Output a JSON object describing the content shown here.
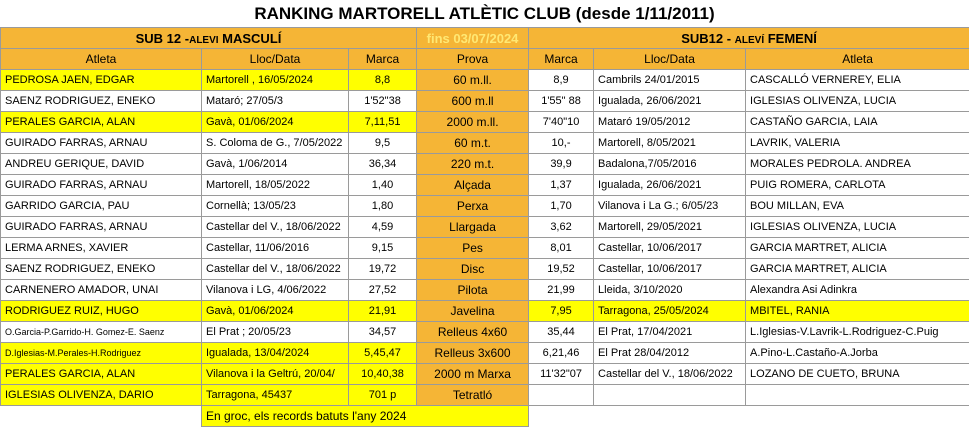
{
  "title": "RANKING  MARTORELL ATLÈTIC CLUB (desde 1/11/2011)",
  "header": {
    "male_main": "SUB 12 -",
    "male_small": "ALEVI",
    "male_end": " MASCULÍ",
    "date_label": "fins 03/07/2024",
    "female_main": "SUB12 - ",
    "female_small": "ALEVÍ",
    "female_end": " FEMENÍ"
  },
  "columns": {
    "atleta_m": "Atleta",
    "lloc_m": "Lloc/Data",
    "marca_m": "Marca",
    "prova": "Prova",
    "marca_f": "Marca",
    "lloc_f": "Lloc/Data",
    "atleta_f": "Atleta"
  },
  "rows": [
    {
      "ma": "PEDROSA JAEN, EDGAR",
      "ml": "Martorell , 16/05/2024",
      "mm": "8,8",
      "p": "60 m.ll.",
      "fm": "8,9",
      "fl": "Cambrils 24/01/2015",
      "fa": "CASCALLÓ VERNEREY, ELIA"
    },
    {
      "ma": "SAENZ RODRIGUEZ, ENEKO",
      "ml": "Mataró; 27/05/3",
      "mm": "1'52\"38",
      "p": "600 m.ll",
      "fm": "1'55\" 88",
      "fl": "Igualada, 26/06/2021",
      "fa": "IGLESIAS OLIVENZA, LUCIA"
    },
    {
      "ma": "PERALES GARCIA, ALAN",
      "ml": "Gavà, 01/06/2024",
      "mm": "7,11,51",
      "p": "2000 m.ll.",
      "fm": "7'40\"10",
      "fl": "Mataró 19/05/2012",
      "fa": "CASTAÑO GARCIA, LAIA"
    },
    {
      "ma": "GUIRADO FARRAS, ARNAU",
      "ml": "S. Coloma de G., 7/05/2022",
      "mm": "9,5",
      "p": "60 m.t.",
      "fm": "10,-",
      "fl": "Martorell, 8/05/2021",
      "fa": "LAVRIK, VALERIA"
    },
    {
      "ma": "ANDREU GERIQUE, DAVID",
      "ml": "Gavà, 1/06/2014",
      "mm": "36,34",
      "p": "220 m.t.",
      "fm": "39,9",
      "fl": "Badalona,7/05/2016",
      "fa": "MORALES PEDROLA. ANDREA"
    },
    {
      "ma": "GUIRADO FARRAS, ARNAU",
      "ml": "Martorell, 18/05/2022",
      "mm": "1,40",
      "p": "Alçada",
      "fm": "1,37",
      "fl": "Igualada, 26/06/2021",
      "fa": "PUIG ROMERA, CARLOTA"
    },
    {
      "ma": "GARRIDO GARCIA, PAU",
      "ml": "Cornellà; 13/05/23",
      "mm": "1,80",
      "p": "Perxa",
      "fm": "1,70",
      "fl": "Vilanova i La G.; 6/05/23",
      "fa": "BOU MILLAN, EVA"
    },
    {
      "ma": "GUIRADO FARRAS, ARNAU",
      "ml": "Castellar del V., 18/06/2022",
      "mm": "4,59",
      "p": "Llargada",
      "fm": "3,62",
      "fl": "Martorell, 29/05/2021",
      "fa": "IGLESIAS OLIVENZA, LUCIA"
    },
    {
      "ma": "LERMA ARNES, XAVIER",
      "ml": "Castellar, 11/06/2016",
      "mm": "9,15",
      "p": "Pes",
      "fm": "8,01",
      "fl": "Castellar, 10/06/2017",
      "fa": "GARCIA MARTRET, ALICIA"
    },
    {
      "ma": "SAENZ RODRIGUEZ, ENEKO",
      "ml": "Castellar del V., 18/06/2022",
      "mm": "19,72",
      "p": "Disc",
      "fm": "19,52",
      "fl": "Castellar, 10/06/2017",
      "fa": "GARCIA MARTRET, ALICIA"
    },
    {
      "ma": "CARNENERO AMADOR, UNAI",
      "ml": "Vilanova i LG, 4/06/2022",
      "mm": "27,52",
      "p": "Pilota",
      "fm": "21,99",
      "fl": "Lleida, 3/10/2020",
      "fa": "Alexandra Asi Adinkra"
    },
    {
      "ma": "RODRIGUEZ RUIZ, HUGO",
      "ml": "Gavà, 01/06/2024",
      "mm": "21,91",
      "p": "Javelina",
      "fm": "7,95",
      "fl": "Tarragona, 25/05/2024",
      "fa": "MBITEL, RANIA"
    },
    {
      "ma": "O.Garcia-P.Garrido-H. Gomez-E. Saenz",
      "ml": "El Prat ; 20/05/23",
      "mm": "34,57",
      "p": "Relleus 4x60",
      "fm": "35,44",
      "fl": "El Prat, 17/04/2021",
      "fa": "L.Iglesias-V.Lavrik-L.Rodriguez-C.Puig"
    },
    {
      "ma": "D.Iglesias-M.Perales-H.Rodriguez",
      "ml": "Igualada, 13/04/2024",
      "mm": "5,45,47",
      "p": "Relleus 3x600",
      "fm": "6,21,46",
      "fl": "El Prat 28/04/2012",
      "fa": "A.Pino-L.Castaño-A.Jorba"
    },
    {
      "ma": "PERALES GARCIA, ALAN",
      "ml": "Vilanova i la Geltrú, 20/04/",
      "mm": "10,40,38",
      "p": "2000 m Marxa",
      "fm": "11'32\"07",
      "fl": "Castellar del V., 18/06/2022",
      "fa": "LOZANO DE CUETO, BRUNA"
    },
    {
      "ma": "IGLESIAS OLIVENZA, DARIO",
      "ml": "Tarragona, 45437",
      "mm": "701 p",
      "p": "Tetratló",
      "fm": "",
      "fl": "",
      "fa": ""
    }
  ],
  "footer": "En groc, els records batuts l'any 2024",
  "colors": {
    "orange": "#f5b536",
    "yellow": "#ffff00",
    "date_text": "#ffe873"
  }
}
